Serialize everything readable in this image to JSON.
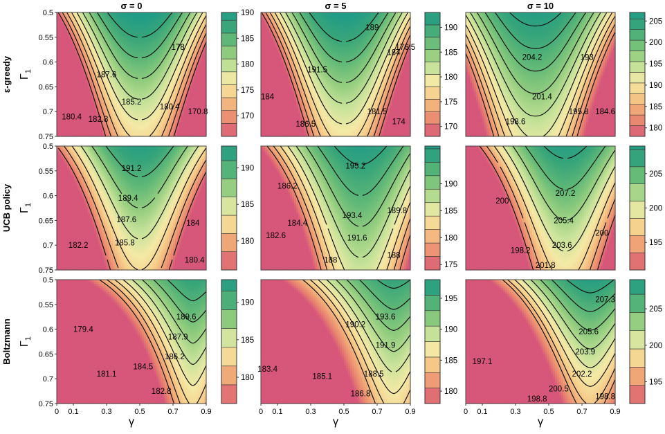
{
  "figure": {
    "column_titles": [
      "σ = 0",
      "σ = 5",
      "σ = 10"
    ],
    "row_labels": [
      "ε-greedy",
      "UCB policy",
      "Boltzmann"
    ],
    "y_axis_label": "Γ",
    "y_axis_label_sub": "1",
    "x_axis_label": "γ"
  },
  "palette": [
    "#d6577a",
    "#e8826f",
    "#f0a877",
    "#f6cf8c",
    "#f4e9a6",
    "#c8e39a",
    "#93cd7f",
    "#5fb877",
    "#38a57a",
    "#219c86"
  ],
  "chart_data": [
    {
      "type": "heatmap",
      "name": "ε-greedy, σ = 0",
      "x": [
        0,
        0.1,
        0.3,
        0.5,
        0.7,
        0.9
      ],
      "y": [
        0.5,
        0.55,
        0.6,
        0.65,
        0.7,
        0.75
      ],
      "xlim": [
        0,
        0.9
      ],
      "ylim": [
        0.5,
        0.75
      ],
      "y_inverted": true,
      "x_ticks": [
        "0",
        "0.1",
        "0.3",
        "0.5",
        "0.7",
        "0.9"
      ],
      "y_ticks": [
        "0.5",
        "0.55",
        "0.6",
        "0.65",
        "0.7",
        "0.75"
      ],
      "model": {
        "peak": 190.5,
        "x0": 0.5,
        "y0": 0.5,
        "ax": 110,
        "ay": 60,
        "axy": 60,
        "power": 2.2
      },
      "levels": [
        167.5,
        170,
        172.5,
        175,
        177.5,
        180,
        182.5,
        185,
        187.5
      ],
      "contour_labels": [
        {
          "text": "187.6",
          "x": 0.3,
          "y": 0.625
        },
        {
          "text": "185.2",
          "x": 0.45,
          "y": 0.68
        },
        {
          "text": "182.8",
          "x": 0.25,
          "y": 0.715
        },
        {
          "text": "180.4",
          "x": 0.09,
          "y": 0.71
        },
        {
          "text": "178",
          "x": 0.73,
          "y": 0.57
        },
        {
          "text": "180.4",
          "x": 0.68,
          "y": 0.69
        },
        {
          "text": "170.8",
          "x": 0.85,
          "y": 0.7
        }
      ],
      "colorbar": {
        "ticks": [
          "170",
          "175",
          "180",
          "185",
          "190"
        ],
        "min": 166,
        "max": 190
      }
    },
    {
      "type": "heatmap",
      "name": "ε-greedy, σ = 5",
      "x": [
        0,
        0.1,
        0.3,
        0.5,
        0.7,
        0.9
      ],
      "y": [
        0.5,
        0.55,
        0.6,
        0.65,
        0.7,
        0.75
      ],
      "xlim": [
        0,
        0.9
      ],
      "ylim": [
        0.5,
        0.75
      ],
      "y_inverted": true,
      "x_ticks": [
        "0",
        "0.1",
        "0.3",
        "0.5",
        "0.7",
        "0.9"
      ],
      "y_ticks": [
        "0.5",
        "0.55",
        "0.6",
        "0.65",
        "0.7",
        "0.75"
      ],
      "model": {
        "peak": 193.5,
        "x0": 0.5,
        "y0": 0.5,
        "ax": 110,
        "ay": 60,
        "axy": 60,
        "power": 2.2
      },
      "levels": [
        170,
        172.5,
        175,
        177.5,
        180,
        182.5,
        185,
        187.5,
        190
      ],
      "contour_labels": [
        {
          "text": "189",
          "x": 0.67,
          "y": 0.53
        },
        {
          "text": "191.5",
          "x": 0.34,
          "y": 0.615
        },
        {
          "text": "184",
          "x": 0.8,
          "y": 0.58
        },
        {
          "text": "176.5",
          "x": 0.87,
          "y": 0.57
        },
        {
          "text": "184",
          "x": 0.04,
          "y": 0.67
        },
        {
          "text": "186.5",
          "x": 0.27,
          "y": 0.725
        },
        {
          "text": "181.5",
          "x": 0.7,
          "y": 0.7
        },
        {
          "text": "174",
          "x": 0.83,
          "y": 0.72
        }
      ],
      "colorbar": {
        "ticks": [
          "170",
          "175",
          "180",
          "185",
          "190"
        ],
        "min": 168,
        "max": 193
      }
    },
    {
      "type": "heatmap",
      "name": "ε-greedy, σ = 10",
      "x": [
        0,
        0.1,
        0.3,
        0.5,
        0.7,
        0.9
      ],
      "y": [
        0.5,
        0.55,
        0.6,
        0.65,
        0.7,
        0.75
      ],
      "xlim": [
        0,
        0.9
      ],
      "ylim": [
        0.5,
        0.75
      ],
      "y_inverted": true,
      "x_ticks": [
        "0",
        "0.1",
        "0.3",
        "0.5",
        "0.7",
        "0.9"
      ],
      "y_ticks": [
        "0.5",
        "0.55",
        "0.6",
        "0.65",
        "0.7",
        "0.75"
      ],
      "model": {
        "peak": 206.5,
        "x0": 0.42,
        "y0": 0.5,
        "ax": 90,
        "ay": 55,
        "axy": 50,
        "power": 2.2
      },
      "levels": [
        182.5,
        185,
        187.5,
        190,
        192.5,
        195,
        197.5,
        200,
        202.5,
        205
      ],
      "contour_labels": [
        {
          "text": "204.2",
          "x": 0.4,
          "y": 0.59
        },
        {
          "text": "201.4",
          "x": 0.46,
          "y": 0.67
        },
        {
          "text": "198.6",
          "x": 0.3,
          "y": 0.72
        },
        {
          "text": "193",
          "x": 0.73,
          "y": 0.59
        },
        {
          "text": "195.8",
          "x": 0.68,
          "y": 0.7
        },
        {
          "text": "184.6",
          "x": 0.84,
          "y": 0.7
        }
      ],
      "colorbar": {
        "ticks": [
          "180",
          "185",
          "190",
          "195",
          "200",
          "205"
        ],
        "min": 178,
        "max": 207
      }
    },
    {
      "type": "heatmap",
      "name": "UCB policy, σ = 0",
      "x": [
        0,
        0.1,
        0.3,
        0.5,
        0.7,
        0.9
      ],
      "y": [
        0.5,
        0.55,
        0.6,
        0.65,
        0.7,
        0.75
      ],
      "xlim": [
        0,
        0.9
      ],
      "ylim": [
        0.5,
        0.75
      ],
      "y_inverted": true,
      "x_ticks": [
        "0",
        "0.1",
        "0.3",
        "0.5",
        "0.7",
        "0.9"
      ],
      "y_ticks": [
        "0.5",
        "0.55",
        "0.6",
        "0.65",
        "0.7",
        "0.75"
      ],
      "model": {
        "peak": 192.5,
        "x0": 0.5,
        "y0": 0.5,
        "ax": 60,
        "ay": 40,
        "axy": 40,
        "power": 2
      },
      "levels": [
        177.5,
        180,
        182.5,
        185,
        187.5,
        190
      ],
      "contour_labels": [
        {
          "text": "191.2",
          "x": 0.45,
          "y": 0.545
        },
        {
          "text": "189.4",
          "x": 0.43,
          "y": 0.605
        },
        {
          "text": "187.6",
          "x": 0.42,
          "y": 0.648
        },
        {
          "text": "185.8",
          "x": 0.41,
          "y": 0.695
        },
        {
          "text": "182.2",
          "x": 0.13,
          "y": 0.7
        },
        {
          "text": "184",
          "x": 0.82,
          "y": 0.655
        },
        {
          "text": "180.4",
          "x": 0.83,
          "y": 0.73
        }
      ],
      "colorbar": {
        "ticks": [
          "180",
          "185",
          "190"
        ],
        "min": 176,
        "max": 193
      }
    },
    {
      "type": "heatmap",
      "name": "UCB policy, σ = 5",
      "x": [
        0,
        0.1,
        0.3,
        0.5,
        0.7,
        0.9
      ],
      "y": [
        0.5,
        0.55,
        0.6,
        0.65,
        0.7,
        0.75
      ],
      "xlim": [
        0,
        0.9
      ],
      "ylim": [
        0.5,
        0.75
      ],
      "y_inverted": true,
      "x_ticks": [
        "0",
        "0.1",
        "0.3",
        "0.5",
        "0.7",
        "0.9"
      ],
      "y_ticks": [
        "0.5",
        "0.55",
        "0.6",
        "0.65",
        "0.7",
        "0.75"
      ],
      "model": {
        "peak": 196.5,
        "x0": 0.6,
        "y0": 0.5,
        "ax": 60,
        "ay": 40,
        "axy": 40,
        "power": 2
      },
      "levels": [
        177.5,
        180,
        182.5,
        185,
        187.5,
        190,
        192.5,
        195
      ],
      "contour_labels": [
        {
          "text": "195.2",
          "x": 0.57,
          "y": 0.54
        },
        {
          "text": "193.4",
          "x": 0.55,
          "y": 0.64
        },
        {
          "text": "191.6",
          "x": 0.58,
          "y": 0.685
        },
        {
          "text": "186.2",
          "x": 0.16,
          "y": 0.58
        },
        {
          "text": "184.4",
          "x": 0.22,
          "y": 0.655
        },
        {
          "text": "182.6",
          "x": 0.09,
          "y": 0.68
        },
        {
          "text": "189.8",
          "x": 0.82,
          "y": 0.63
        },
        {
          "text": "188",
          "x": 0.8,
          "y": 0.72
        },
        {
          "text": "188",
          "x": 0.42,
          "y": 0.73
        }
      ],
      "colorbar": {
        "ticks": [
          "175",
          "180",
          "185",
          "190"
        ],
        "min": 174,
        "max": 197
      }
    },
    {
      "type": "heatmap",
      "name": "UCB policy, σ = 10",
      "x": [
        0,
        0.1,
        0.3,
        0.5,
        0.7,
        0.9
      ],
      "y": [
        0.5,
        0.55,
        0.6,
        0.65,
        0.7,
        0.75
      ],
      "xlim": [
        0,
        0.9
      ],
      "ylim": [
        0.5,
        0.75
      ],
      "y_inverted": true,
      "x_ticks": [
        "0",
        "0.1",
        "0.3",
        "0.5",
        "0.7",
        "0.9"
      ],
      "y_ticks": [
        "0.5",
        "0.55",
        "0.6",
        "0.65",
        "0.7",
        "0.75"
      ],
      "model": {
        "peak": 208.5,
        "x0": 0.6,
        "y0": 0.5,
        "ax": 60,
        "ay": 40,
        "axy": 40,
        "power": 2
      },
      "levels": [
        192.5,
        195,
        197.5,
        200,
        202.5,
        205,
        207.5
      ],
      "contour_labels": [
        {
          "text": "207.2",
          "x": 0.6,
          "y": 0.595
        },
        {
          "text": "205.4",
          "x": 0.59,
          "y": 0.65
        },
        {
          "text": "203.6",
          "x": 0.58,
          "y": 0.7
        },
        {
          "text": "200",
          "x": 0.22,
          "y": 0.61
        },
        {
          "text": "198.2",
          "x": 0.33,
          "y": 0.71
        },
        {
          "text": "201.8",
          "x": 0.48,
          "y": 0.74
        },
        {
          "text": "200",
          "x": 0.82,
          "y": 0.675
        }
      ],
      "colorbar": {
        "ticks": [
          "195",
          "200",
          "205"
        ],
        "min": 191,
        "max": 209
      }
    },
    {
      "type": "heatmap",
      "name": "Boltzmann, σ = 0",
      "x": [
        0,
        0.1,
        0.3,
        0.5,
        0.7,
        0.9
      ],
      "y": [
        0.5,
        0.55,
        0.6,
        0.65,
        0.7,
        0.75
      ],
      "xlim": [
        0,
        0.9
      ],
      "ylim": [
        0.5,
        0.75
      ],
      "y_inverted": true,
      "x_ticks": [
        "0",
        "0.1",
        "0.3",
        "0.5",
        "0.7",
        "0.9"
      ],
      "y_ticks": [
        "0.5",
        "0.55",
        "0.6",
        "0.65",
        "0.7",
        "0.75"
      ],
      "model": {
        "peak": 191.5,
        "x0": 0.82,
        "y0": 0.5,
        "ax": 30,
        "ay": 35,
        "axy": 30,
        "power": 1.6
      },
      "levels": [
        179.5,
        181,
        182.5,
        184,
        185.5,
        187,
        188.5,
        190
      ],
      "contour_labels": [
        {
          "text": "189.6",
          "x": 0.78,
          "y": 0.575
        },
        {
          "text": "187.9",
          "x": 0.73,
          "y": 0.615
        },
        {
          "text": "186.2",
          "x": 0.71,
          "y": 0.655
        },
        {
          "text": "184.5",
          "x": 0.52,
          "y": 0.675
        },
        {
          "text": "182.8",
          "x": 0.63,
          "y": 0.725
        },
        {
          "text": "181.1",
          "x": 0.3,
          "y": 0.69
        },
        {
          "text": "179.4",
          "x": 0.16,
          "y": 0.6
        }
      ],
      "colorbar": {
        "ticks": [
          "180",
          "185",
          "190"
        ],
        "min": 176.5,
        "max": 193
      }
    },
    {
      "type": "heatmap",
      "name": "Boltzmann, σ = 5",
      "x": [
        0,
        0.1,
        0.3,
        0.5,
        0.7,
        0.9
      ],
      "y": [
        0.5,
        0.55,
        0.6,
        0.65,
        0.7,
        0.75
      ],
      "xlim": [
        0,
        0.9
      ],
      "ylim": [
        0.5,
        0.75
      ],
      "y_inverted": true,
      "x_ticks": [
        "0",
        "0.1",
        "0.3",
        "0.5",
        "0.7",
        "0.9"
      ],
      "y_ticks": [
        "0.5",
        "0.55",
        "0.6",
        "0.65",
        "0.7",
        "0.75"
      ],
      "model": {
        "peak": 196,
        "x0": 0.8,
        "y0": 0.5,
        "ax": 35,
        "ay": 40,
        "axy": 30,
        "power": 1.7
      },
      "levels": [
        183.4,
        185.1,
        186.8,
        188.5,
        190.2,
        191.9,
        193.6,
        195.3
      ],
      "contour_labels": [
        {
          "text": "193.6",
          "x": 0.75,
          "y": 0.575
        },
        {
          "text": "191.9",
          "x": 0.75,
          "y": 0.632
        },
        {
          "text": "190.2",
          "x": 0.57,
          "y": 0.59
        },
        {
          "text": "188.5",
          "x": 0.68,
          "y": 0.69
        },
        {
          "text": "186.8",
          "x": 0.6,
          "y": 0.73
        },
        {
          "text": "185.1",
          "x": 0.37,
          "y": 0.695
        },
        {
          "text": "183.4",
          "x": 0.04,
          "y": 0.68
        }
      ],
      "colorbar": {
        "ticks": [
          "180",
          "185",
          "190",
          "195"
        ],
        "min": 178,
        "max": 198
      }
    },
    {
      "type": "heatmap",
      "name": "Boltzmann, σ = 10",
      "x": [
        0,
        0.1,
        0.3,
        0.5,
        0.7,
        0.9
      ],
      "y": [
        0.5,
        0.55,
        0.6,
        0.65,
        0.7,
        0.75
      ],
      "xlim": [
        0,
        0.9
      ],
      "ylim": [
        0.5,
        0.75
      ],
      "y_inverted": true,
      "x_ticks": [
        "0",
        "0.1",
        "0.3",
        "0.5",
        "0.7",
        "0.9"
      ],
      "y_ticks": [
        "0.5",
        "0.55",
        "0.6",
        "0.65",
        "0.7",
        "0.75"
      ],
      "model": {
        "peak": 208.5,
        "x0": 0.75,
        "y0": 0.5,
        "ax": 40,
        "ay": 45,
        "axy": 35,
        "power": 1.8
      },
      "levels": [
        195.8,
        197.1,
        198.8,
        200.5,
        202.2,
        203.9,
        205.6,
        207.3
      ],
      "contour_labels": [
        {
          "text": "207.3",
          "x": 0.84,
          "y": 0.54
        },
        {
          "text": "205.6",
          "x": 0.74,
          "y": 0.605
        },
        {
          "text": "203.9",
          "x": 0.72,
          "y": 0.645
        },
        {
          "text": "202.2",
          "x": 0.7,
          "y": 0.69
        },
        {
          "text": "200.5",
          "x": 0.56,
          "y": 0.72
        },
        {
          "text": "198.8",
          "x": 0.43,
          "y": 0.74
        },
        {
          "text": "198.8",
          "x": 0.84,
          "y": 0.735
        },
        {
          "text": "197.1",
          "x": 0.1,
          "y": 0.665
        }
      ],
      "colorbar": {
        "ticks": [
          "195",
          "200",
          "205"
        ],
        "min": 192,
        "max": 209
      }
    }
  ]
}
